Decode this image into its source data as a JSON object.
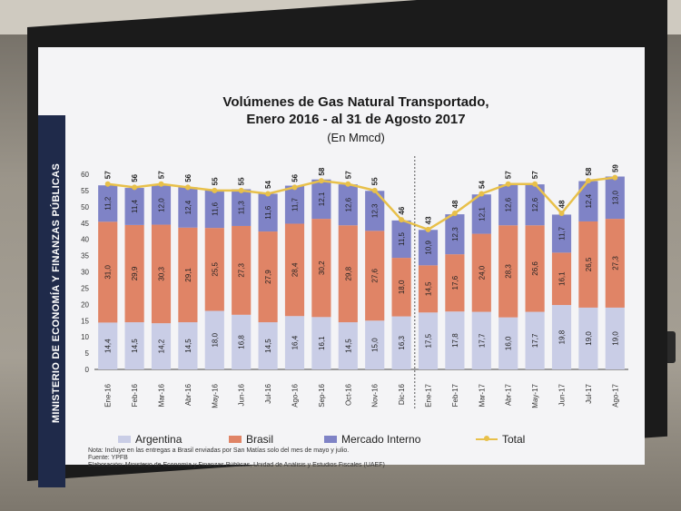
{
  "slide": {
    "title_line1": "Volúmenes de Gas Natural Transportado,",
    "title_line2": "Enero 2016 - al 31 de Agosto 2017",
    "subtitle": "(En Mmcd)",
    "sidebar": "MINISTERIO DE ECONOMÍA Y FINANZAS PÚBLICAS",
    "note1": "Nota: Incluye en las entregas a Brasil enviadas por San Matías solo del mes de mayo y julio.",
    "note2": "Fuente: YPFB",
    "note3": "Elaboración: Ministerio de Economía y Finanzas Públicas, Unidad de Análisis y Estudios Fiscales (UAEF)"
  },
  "colors": {
    "argentina": "#c9cde6",
    "brasil": "#e08466",
    "mercado_interno": "#7f83c6",
    "total": "#e8c04a",
    "axis": "#444444"
  },
  "chart_data": {
    "type": "bar",
    "stacked": true,
    "categories": [
      "Ene-16",
      "Feb-16",
      "Mar-16",
      "Abr-16",
      "May-16",
      "Jun-16",
      "Jul-16",
      "Ago-16",
      "Sep-16",
      "Oct-16",
      "Nov-16",
      "Dic-16",
      "Ene-17",
      "Feb-17",
      "Mar-17",
      "Abr-17",
      "May-17",
      "Jun-17",
      "Jul-17",
      "Ago-17"
    ],
    "series": [
      {
        "name": "Argentina",
        "values": [
          14.4,
          14.5,
          14.2,
          14.5,
          18.0,
          16.8,
          14.5,
          16.4,
          16.1,
          14.5,
          15.0,
          16.3,
          17.5,
          17.8,
          17.7,
          16.0,
          17.7,
          19.8,
          19.0,
          19.0
        ],
        "labels": [
          "14,4",
          "14,5",
          "14,2",
          "14,5",
          "18,0",
          "16,8",
          "14,5",
          "16,4",
          "16,1",
          "14,5",
          "15,0",
          "16,3",
          "17,5",
          "17,8",
          "17,7",
          "16,0",
          "17,7",
          "19,8",
          "19,0",
          "19,0"
        ]
      },
      {
        "name": "Brasil",
        "values": [
          31.0,
          29.9,
          30.3,
          29.1,
          25.5,
          27.3,
          27.9,
          28.4,
          30.2,
          29.8,
          27.6,
          18.0,
          14.5,
          17.6,
          24.0,
          28.3,
          26.6,
          16.1,
          26.5,
          27.3
        ],
        "labels": [
          "31,0",
          "29,9",
          "30,3",
          "29,1",
          "25,5",
          "27,3",
          "27,9",
          "28,4",
          "30,2",
          "29,8",
          "27,6",
          "18,0",
          "14,5",
          "17,6",
          "24,0",
          "28,3",
          "26,6",
          "16,1",
          "26,5",
          "27,3"
        ]
      },
      {
        "name": "Mercado Interno",
        "values": [
          11.2,
          11.4,
          12.0,
          12.4,
          11.6,
          11.3,
          11.6,
          11.7,
          12.1,
          12.6,
          12.3,
          11.5,
          10.9,
          12.3,
          12.1,
          12.6,
          12.6,
          11.7,
          12.4,
          13.0
        ],
        "labels": [
          "11,2",
          "11,4",
          "12,0",
          "12,4",
          "11,6",
          "11,3",
          "11,6",
          "11,7",
          "12,1",
          "12,6",
          "12,3",
          "11,5",
          "10,9",
          "12,3",
          "12,1",
          "12,6",
          "12,6",
          "11,7",
          "12,4",
          "13,0"
        ]
      }
    ],
    "totals": [
      57,
      56,
      57,
      56,
      55,
      55,
      54,
      56,
      58,
      57,
      55,
      46,
      43,
      48,
      54,
      57,
      57,
      48,
      58,
      59
    ],
    "total_name": "Total",
    "ylim": [
      0,
      60
    ],
    "yticks": [
      0,
      5,
      10,
      15,
      20,
      25,
      30,
      35,
      40,
      45,
      50,
      55,
      60
    ],
    "separator_after": "Dic-16",
    "legend": [
      "Argentina",
      "Brasil",
      "Mercado Interno",
      "Total"
    ]
  }
}
